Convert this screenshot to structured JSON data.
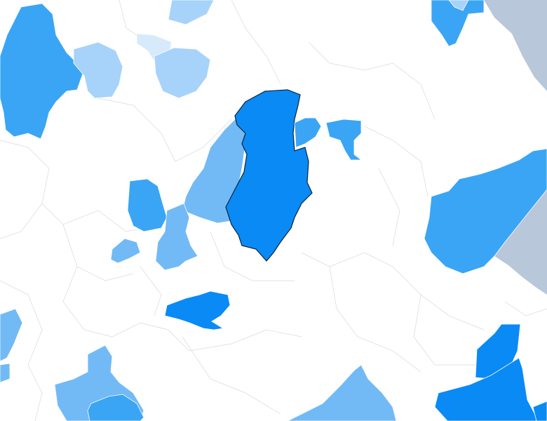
{
  "map": {
    "colors": {
      "background": "#ffffff",
      "water": "#b8c7d9",
      "boundary": "#d9d9d9",
      "level_1": "#d6eafb",
      "level_2": "#a7d3fa",
      "level_3": "#72baf5",
      "level_4": "#3aa5f4",
      "level_5": "#0a8af5",
      "selected_outline": "#0a2540"
    }
  }
}
